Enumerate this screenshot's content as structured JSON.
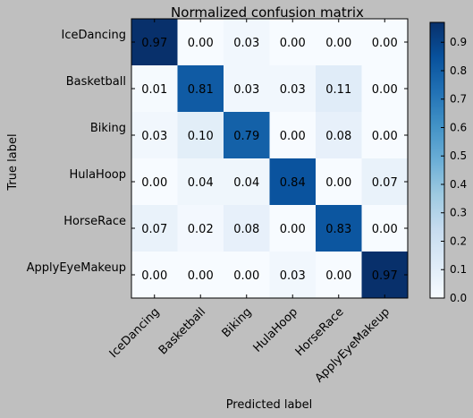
{
  "chart_data": {
    "type": "heatmap",
    "title": "Normalized confusion matrix",
    "xlabel": "Predicted label",
    "ylabel": "True label",
    "x_categories": [
      "IceDancing",
      "Basketball",
      "Biking",
      "HulaHoop",
      "HorseRace",
      "ApplyEyeMakeup"
    ],
    "y_categories": [
      "IceDancing",
      "Basketball",
      "Biking",
      "HulaHoop",
      "HorseRace",
      "ApplyEyeMakeup"
    ],
    "values": [
      [
        0.97,
        0.0,
        0.03,
        0.0,
        0.0,
        0.0
      ],
      [
        0.01,
        0.81,
        0.03,
        0.03,
        0.11,
        0.0
      ],
      [
        0.03,
        0.1,
        0.79,
        0.0,
        0.08,
        0.0
      ],
      [
        0.0,
        0.04,
        0.04,
        0.84,
        0.0,
        0.07
      ],
      [
        0.07,
        0.02,
        0.08,
        0.0,
        0.83,
        0.0
      ],
      [
        0.0,
        0.0,
        0.0,
        0.03,
        0.0,
        0.97
      ]
    ],
    "value_labels": [
      [
        "0.97",
        "0.00",
        "0.03",
        "0.00",
        "0.00",
        "0.00"
      ],
      [
        "0.01",
        "0.81",
        "0.03",
        "0.03",
        "0.11",
        "0.00"
      ],
      [
        "0.03",
        "0.10",
        "0.79",
        "0.00",
        "0.08",
        "0.00"
      ],
      [
        "0.00",
        "0.04",
        "0.04",
        "0.84",
        "0.00",
        "0.07"
      ],
      [
        "0.07",
        "0.02",
        "0.08",
        "0.00",
        "0.83",
        "0.00"
      ],
      [
        "0.00",
        "0.00",
        "0.00",
        "0.03",
        "0.00",
        "0.97"
      ]
    ],
    "colorbar": {
      "min": 0.0,
      "max": 0.97,
      "ticks": [
        "0.0",
        "0.1",
        "0.2",
        "0.3",
        "0.4",
        "0.5",
        "0.6",
        "0.7",
        "0.8",
        "0.9"
      ],
      "colormap": "Blues",
      "low_color": "#f7fbff",
      "high_color": "#08306b"
    },
    "grid": false
  }
}
